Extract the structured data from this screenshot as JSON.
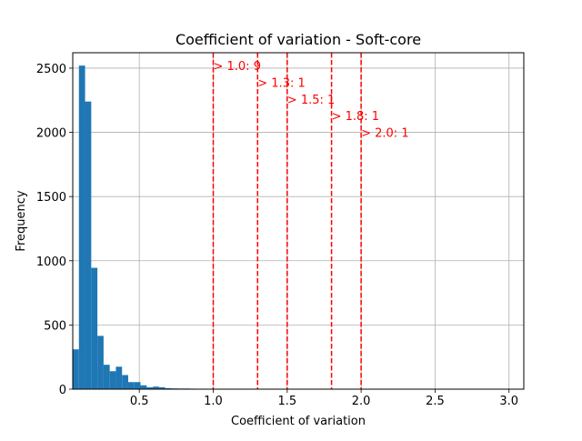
{
  "chart_data": {
    "type": "bar",
    "title": "Coefficient of variation - Soft-core",
    "xlabel": "Coefficient of variation",
    "ylabel": "Frequency",
    "xlim": [
      0.05,
      3.1
    ],
    "ylim": [
      0,
      2620
    ],
    "grid": true,
    "x_ticks": [
      0.5,
      1.0,
      1.5,
      2.0,
      2.5,
      3.0
    ],
    "x_tick_labels": [
      "0.5",
      "1.0",
      "1.5",
      "2.0",
      "2.5",
      "3.0"
    ],
    "y_ticks": [
      0,
      500,
      1000,
      1500,
      2000,
      2500
    ],
    "y_tick_labels": [
      "0",
      "500",
      "1000",
      "1500",
      "2000",
      "2500"
    ],
    "bar_color": "#1f77b4",
    "bin_width": 0.0417,
    "bin_starts": [
      0.05,
      0.0917,
      0.1333,
      0.175,
      0.2167,
      0.2583,
      0.3,
      0.3417,
      0.3833,
      0.425,
      0.4667,
      0.5083,
      0.55,
      0.5917,
      0.6333,
      0.675,
      0.7167,
      0.7583,
      0.8,
      0.8417,
      0.8833,
      0.925
    ],
    "values": [
      310,
      2520,
      2240,
      945,
      415,
      190,
      140,
      175,
      110,
      55,
      55,
      30,
      15,
      20,
      15,
      8,
      6,
      5,
      5,
      4,
      3,
      3
    ],
    "thresholds": [
      {
        "x": 1.0,
        "label": "> 1.0: 9",
        "label_y": 2520
      },
      {
        "x": 1.3,
        "label": "> 1.3: 1",
        "label_y": 2390
      },
      {
        "x": 1.5,
        "label": "> 1.5: 1",
        "label_y": 2260
      },
      {
        "x": 1.8,
        "label": "> 1.8: 1",
        "label_y": 2130
      },
      {
        "x": 2.0,
        "label": "> 2.0: 1",
        "label_y": 2000
      }
    ],
    "threshold_color": "#ff0000"
  }
}
